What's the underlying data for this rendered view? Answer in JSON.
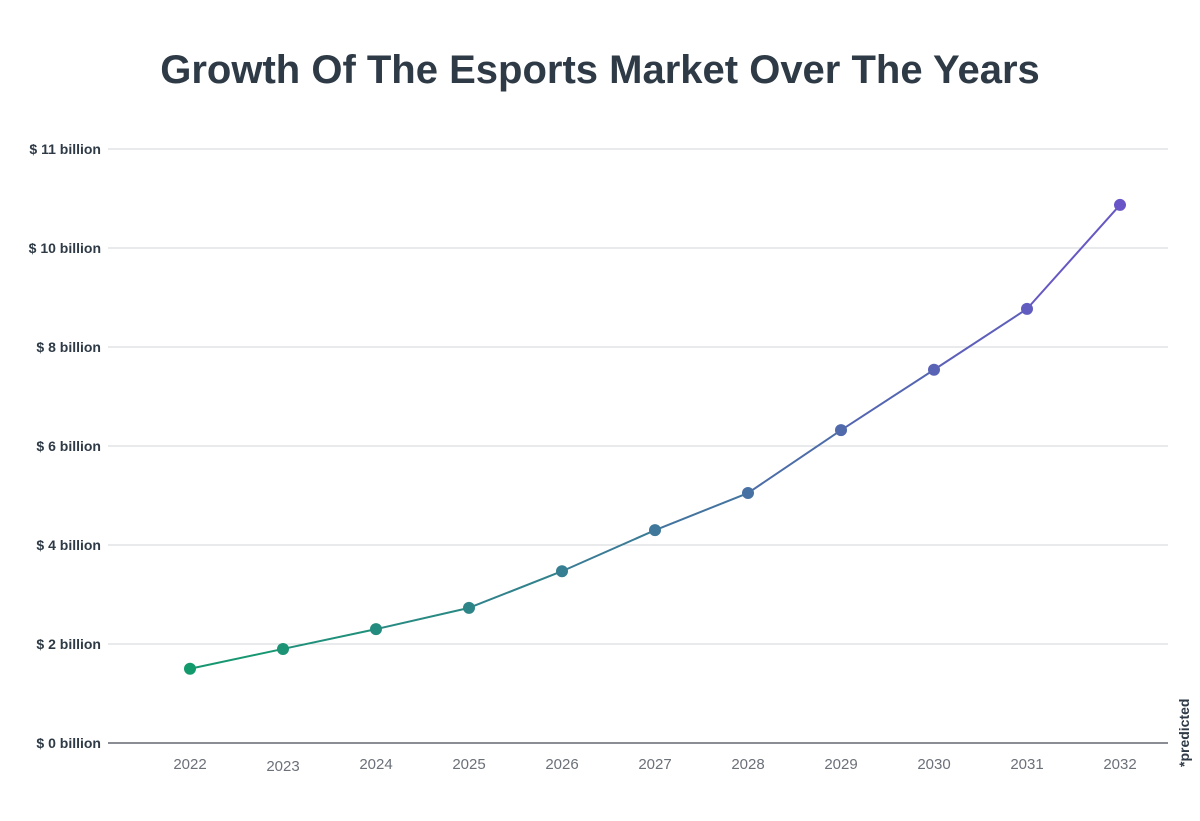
{
  "chart_data": {
    "type": "line",
    "title": "Growth Of The Esports Market Over The Years",
    "xlabel": "",
    "ylabel": "",
    "categories": [
      "2022",
      "2023",
      "2024",
      "2025",
      "2026",
      "2027",
      "2028",
      "2029",
      "2030",
      "2031",
      "2032"
    ],
    "values": [
      1.5,
      1.9,
      2.3,
      2.73,
      3.47,
      4.3,
      5.05,
      6.32,
      7.54,
      8.77,
      10.87
    ],
    "unit": "billion USD",
    "ylim": [
      0,
      12
    ],
    "ytick_labels": [
      "$ 0 billion",
      "$ 2 billion",
      "$ 4 billion",
      "$ 6 billion",
      "$ 8 billion",
      "$ 10 billion",
      "$ 11 billion"
    ],
    "grid": true,
    "note": "*predicted",
    "colors": {
      "start": "#139a6c",
      "end": "#6a55c8",
      "grid": "#d3d5da",
      "axis": "#8a8d93"
    }
  }
}
